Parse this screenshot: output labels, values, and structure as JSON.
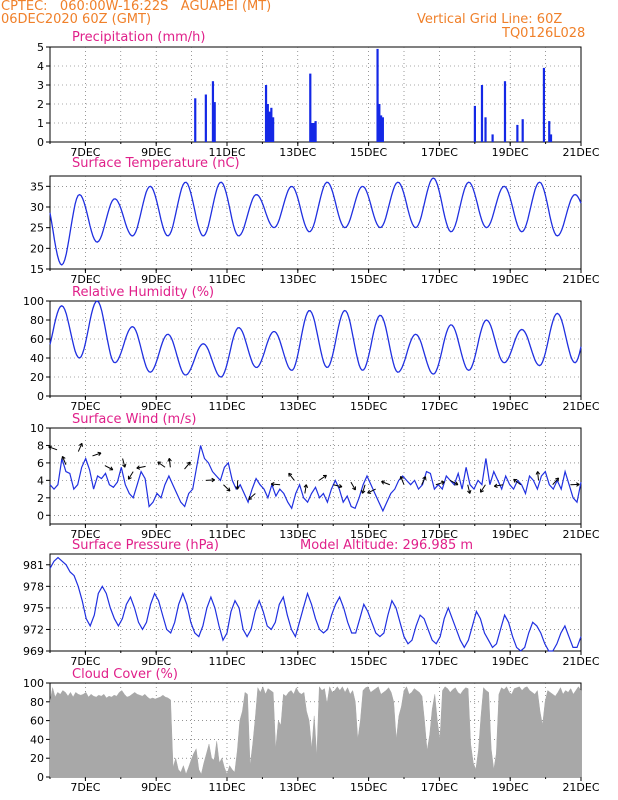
{
  "header": {
    "line1_left": "CPTEC:   060:00W-16:22S   AGUAPEI (MT)",
    "line2_left": "06DEC2020 60Z (GMT)",
    "line2_right": "Vertical Grid Line: 60Z",
    "line3_right": "TQ0126L028"
  },
  "colors": {
    "header": "#f0802a",
    "title": "#e0208a",
    "line": "#2030e0",
    "bar": "#1428e6",
    "cloud": "#a8a8a8",
    "arrow": "#000000",
    "grid": "#555555"
  },
  "x_ticks": [
    "7DEC",
    "9DEC",
    "11DEC",
    "13DEC",
    "15DEC",
    "17DEC",
    "19DEC",
    "21DEC"
  ],
  "chart_data": [
    {
      "id": "precip",
      "type": "bar",
      "title": "Precipitation (mm/h)",
      "ylim": [
        0,
        5
      ],
      "yticks": [
        "0",
        "1",
        "2",
        "3",
        "4",
        "5"
      ],
      "x_days": [
        6.0,
        21.0
      ],
      "bars": [
        [
          10.1,
          2.3
        ],
        [
          10.4,
          2.5
        ],
        [
          10.6,
          3.2
        ],
        [
          10.65,
          2.1
        ],
        [
          12.1,
          3.0
        ],
        [
          12.15,
          2.0
        ],
        [
          12.2,
          1.6
        ],
        [
          12.25,
          1.8
        ],
        [
          12.3,
          1.3
        ],
        [
          13.35,
          3.6
        ],
        [
          13.4,
          1.0
        ],
        [
          13.45,
          1.0
        ],
        [
          13.5,
          1.1
        ],
        [
          15.25,
          4.9
        ],
        [
          15.3,
          2.0
        ],
        [
          15.35,
          1.4
        ],
        [
          15.4,
          1.3
        ],
        [
          18.0,
          1.9
        ],
        [
          18.2,
          3.0
        ],
        [
          18.3,
          1.3
        ],
        [
          18.5,
          0.4
        ],
        [
          18.85,
          3.2
        ],
        [
          19.2,
          0.9
        ],
        [
          19.35,
          1.2
        ],
        [
          19.95,
          3.9
        ],
        [
          20.1,
          1.1
        ],
        [
          20.15,
          0.4
        ]
      ]
    },
    {
      "id": "temp",
      "type": "line",
      "title": "Surface Temperature (nC)",
      "ylim": [
        15,
        37.5
      ],
      "yticks": [
        "15",
        "20",
        "25",
        "30",
        "35"
      ],
      "x_days": [
        6.0,
        21.0
      ],
      "min": [
        19.5,
        16,
        21.5,
        23,
        23,
        23,
        23,
        25,
        24,
        25,
        25,
        25,
        24,
        25,
        24,
        23,
        25
      ],
      "max": [
        null,
        33,
        32,
        35,
        36,
        36,
        33,
        35,
        36,
        35,
        36,
        37,
        36,
        35,
        36,
        33,
        32
      ],
      "shift": 0.33
    },
    {
      "id": "rh",
      "type": "line",
      "title": "Relative Humidity (%)",
      "ylim": [
        0,
        100
      ],
      "yticks": [
        "0",
        "20",
        "40",
        "60",
        "80",
        "100"
      ],
      "x_days": [
        6.0,
        21.0
      ],
      "min": [
        null,
        40,
        35,
        25,
        22,
        20,
        30,
        27,
        30,
        27,
        25,
        23,
        27,
        35,
        32,
        35
      ],
      "max": [
        95,
        100,
        73,
        65,
        55,
        72,
        68,
        90,
        90,
        85,
        65,
        75,
        80,
        70,
        87,
        100,
        48
      ],
      "shift": 0.83
    },
    {
      "id": "wind",
      "type": "line",
      "title": "Surface Wind (m/s)",
      "ylim": [
        -1,
        10
      ],
      "yticks": [
        "0",
        "2",
        "4",
        "6",
        "8",
        "10"
      ],
      "x_days": [
        6.0,
        21.0
      ],
      "speed": [
        3.5,
        3.0,
        3.5,
        6.5,
        5.0,
        4.8,
        3.0,
        3.5,
        5.5,
        6.5,
        5.2,
        3.0,
        4.5,
        4.2,
        4.8,
        3.5,
        3.2,
        3.8,
        5.5,
        3.5,
        2.5,
        2.0,
        3.5,
        5.0,
        4.2,
        1.0,
        1.5,
        2.5,
        2.0,
        3.5,
        4.5,
        3.5,
        2.5,
        1.5,
        1.0,
        2.5,
        3.0,
        5.5,
        8.0,
        6.5,
        6.0,
        5.0,
        4.5,
        4.0,
        5.5,
        6.0,
        4.0,
        3.0,
        3.5,
        2.5,
        1.5,
        3.0,
        4.2,
        3.5,
        3.0,
        2.0,
        3.5,
        2.2,
        3.0,
        2.5,
        1.5,
        0.8,
        2.5,
        3.5,
        2.0,
        1.5,
        2.5,
        3.2,
        2.0,
        2.5,
        1.5,
        3.0,
        4.0,
        3.0,
        1.5,
        2.2,
        1.0,
        0.8,
        2.0,
        3.5,
        4.5,
        3.5,
        2.5,
        1.5,
        0.5,
        1.5,
        2.5,
        3.0,
        4.0,
        4.5,
        4.0,
        3.5,
        4.0,
        3.0,
        3.5,
        5.0,
        4.8,
        3.0,
        3.5,
        3.0,
        4.5,
        4.0,
        3.5,
        4.8,
        3.0,
        5.5,
        3.5,
        3.0,
        4.0,
        3.5,
        6.5,
        3.5,
        5.0,
        4.0,
        3.0,
        4.5,
        3.5,
        3.0,
        4.0,
        3.5,
        2.5,
        4.5,
        4.0,
        3.0,
        4.5,
        5.0,
        3.5,
        3.0,
        4.0,
        3.0,
        5.0,
        3.5,
        2.0,
        1.5,
        3.8
      ],
      "arrows": [
        [
          6.2,
          7.5
        ],
        [
          6.45,
          5.8
        ],
        [
          6.8,
          7.3
        ],
        [
          7.2,
          6.8
        ],
        [
          7.55,
          5.7
        ],
        [
          8.05,
          6.5
        ],
        [
          8.35,
          5.0
        ],
        [
          8.7,
          5.6
        ],
        [
          9.25,
          5.5
        ],
        [
          9.4,
          5.5
        ],
        [
          9.8,
          5.3
        ],
        [
          10.4,
          4.0
        ],
        [
          10.9,
          3.5
        ],
        [
          11.3,
          4.0
        ],
        [
          11.8,
          2.5
        ],
        [
          12.5,
          3.5
        ],
        [
          12.9,
          4.0
        ],
        [
          13.2,
          2.5
        ],
        [
          13.6,
          4.0
        ],
        [
          14.0,
          3.5
        ],
        [
          14.5,
          3.8
        ],
        [
          14.9,
          3.5
        ],
        [
          15.2,
          3.0
        ],
        [
          15.6,
          3.5
        ],
        [
          16.0,
          3.5
        ],
        [
          16.5,
          3.5
        ],
        [
          16.9,
          3.5
        ],
        [
          17.3,
          4.0
        ],
        [
          17.8,
          3.5
        ],
        [
          18.3,
          3.5
        ],
        [
          18.8,
          3.5
        ],
        [
          19.3,
          3.5
        ],
        [
          19.8,
          4.0
        ],
        [
          20.2,
          3.5
        ],
        [
          20.7,
          3.5
        ]
      ]
    },
    {
      "id": "press",
      "type": "line",
      "title": "Surface Pressure (hPa)",
      "ylim": [
        969,
        982.5
      ],
      "yticks": [
        "969",
        "972",
        "975",
        "978",
        "981"
      ],
      "x_days": [
        6.0,
        21.0
      ],
      "extra_label": "Model Altitude: 296.985  m",
      "pressure": [
        980.5,
        981.5,
        982,
        981.5,
        981,
        980,
        979.5,
        978,
        976,
        973.5,
        972.5,
        974,
        977,
        978,
        977,
        975,
        973.5,
        972.5,
        973.5,
        975.5,
        976.5,
        975,
        973,
        972,
        973,
        975.5,
        977,
        976,
        974,
        972,
        971.5,
        973,
        975.5,
        977,
        975.5,
        973,
        971.5,
        971,
        972.5,
        975,
        976.5,
        975,
        972.5,
        970.5,
        971.5,
        974.5,
        976,
        975,
        972,
        971,
        972,
        974.5,
        976,
        974.5,
        972.5,
        972,
        973,
        975.5,
        976.5,
        974,
        972,
        971,
        973,
        975,
        977,
        975.5,
        973.5,
        972,
        971.5,
        972,
        974,
        975.5,
        976.5,
        975,
        973,
        971.5,
        971.5,
        973.5,
        975.5,
        974.5,
        973,
        971.5,
        971,
        971.5,
        974,
        976,
        975,
        973,
        971,
        970,
        970.5,
        972.5,
        974,
        973.5,
        972,
        970.5,
        970,
        971,
        973.5,
        975,
        973.5,
        972,
        970.5,
        969.5,
        970.5,
        972.5,
        974.5,
        973.5,
        971.5,
        970.5,
        969.5,
        970,
        972,
        974,
        973,
        971,
        969.5,
        969,
        969.5,
        971.5,
        973,
        972.5,
        971.5,
        970,
        969,
        969,
        970,
        971.5,
        972.5,
        971,
        969.5,
        969.5,
        971
      ]
    },
    {
      "id": "cloud",
      "type": "area",
      "title": "Cloud Cover (%)",
      "ylim": [
        0,
        100
      ],
      "yticks": [
        "0",
        "20",
        "40",
        "60",
        "80",
        "100"
      ],
      "x_days": [
        6.0,
        21.0
      ],
      "cover": [
        80,
        95,
        85,
        90,
        88,
        92,
        90,
        86,
        90,
        85,
        90,
        88,
        87,
        88,
        90,
        85,
        88,
        86,
        85,
        87,
        86,
        88,
        84,
        86,
        85,
        87,
        86,
        90,
        92,
        88,
        85,
        86,
        88,
        90,
        88,
        87,
        86,
        88,
        85,
        83,
        84,
        83,
        84,
        85,
        87,
        85,
        84,
        82,
        10,
        20,
        8,
        5,
        12,
        3,
        10,
        18,
        25,
        30,
        8,
        3,
        15,
        25,
        35,
        20,
        18,
        38,
        15,
        20,
        10,
        3,
        12,
        8,
        5,
        28,
        60,
        70,
        90,
        88,
        12,
        35,
        62,
        95,
        90,
        96,
        88,
        94,
        92,
        90,
        30,
        60,
        55,
        88,
        86,
        90,
        92,
        88,
        95,
        90,
        88,
        90,
        70,
        60,
        30,
        65,
        22,
        96,
        92,
        94,
        78,
        96,
        90,
        92,
        96,
        92,
        96,
        90,
        95,
        88,
        92,
        80,
        40,
        60,
        92,
        95,
        96,
        90,
        92,
        94,
        96,
        88,
        90,
        92,
        95,
        90,
        80,
        40,
        65,
        75,
        92,
        96,
        88,
        90,
        94,
        92,
        90,
        86,
        60,
        28,
        45,
        72,
        88,
        60,
        40,
        92,
        96,
        94,
        90,
        93,
        95,
        90,
        88,
        92,
        95,
        94,
        35,
        15,
        8,
        28,
        65,
        95,
        92,
        90,
        30,
        8,
        25,
        88,
        95,
        93,
        96,
        90,
        88,
        94,
        95,
        96,
        92,
        95,
        96,
        92,
        90,
        88,
        92,
        70,
        55,
        80,
        92,
        90,
        88,
        86,
        90,
        95,
        88,
        92,
        90,
        94,
        88,
        92,
        96,
        92
      ]
    }
  ]
}
